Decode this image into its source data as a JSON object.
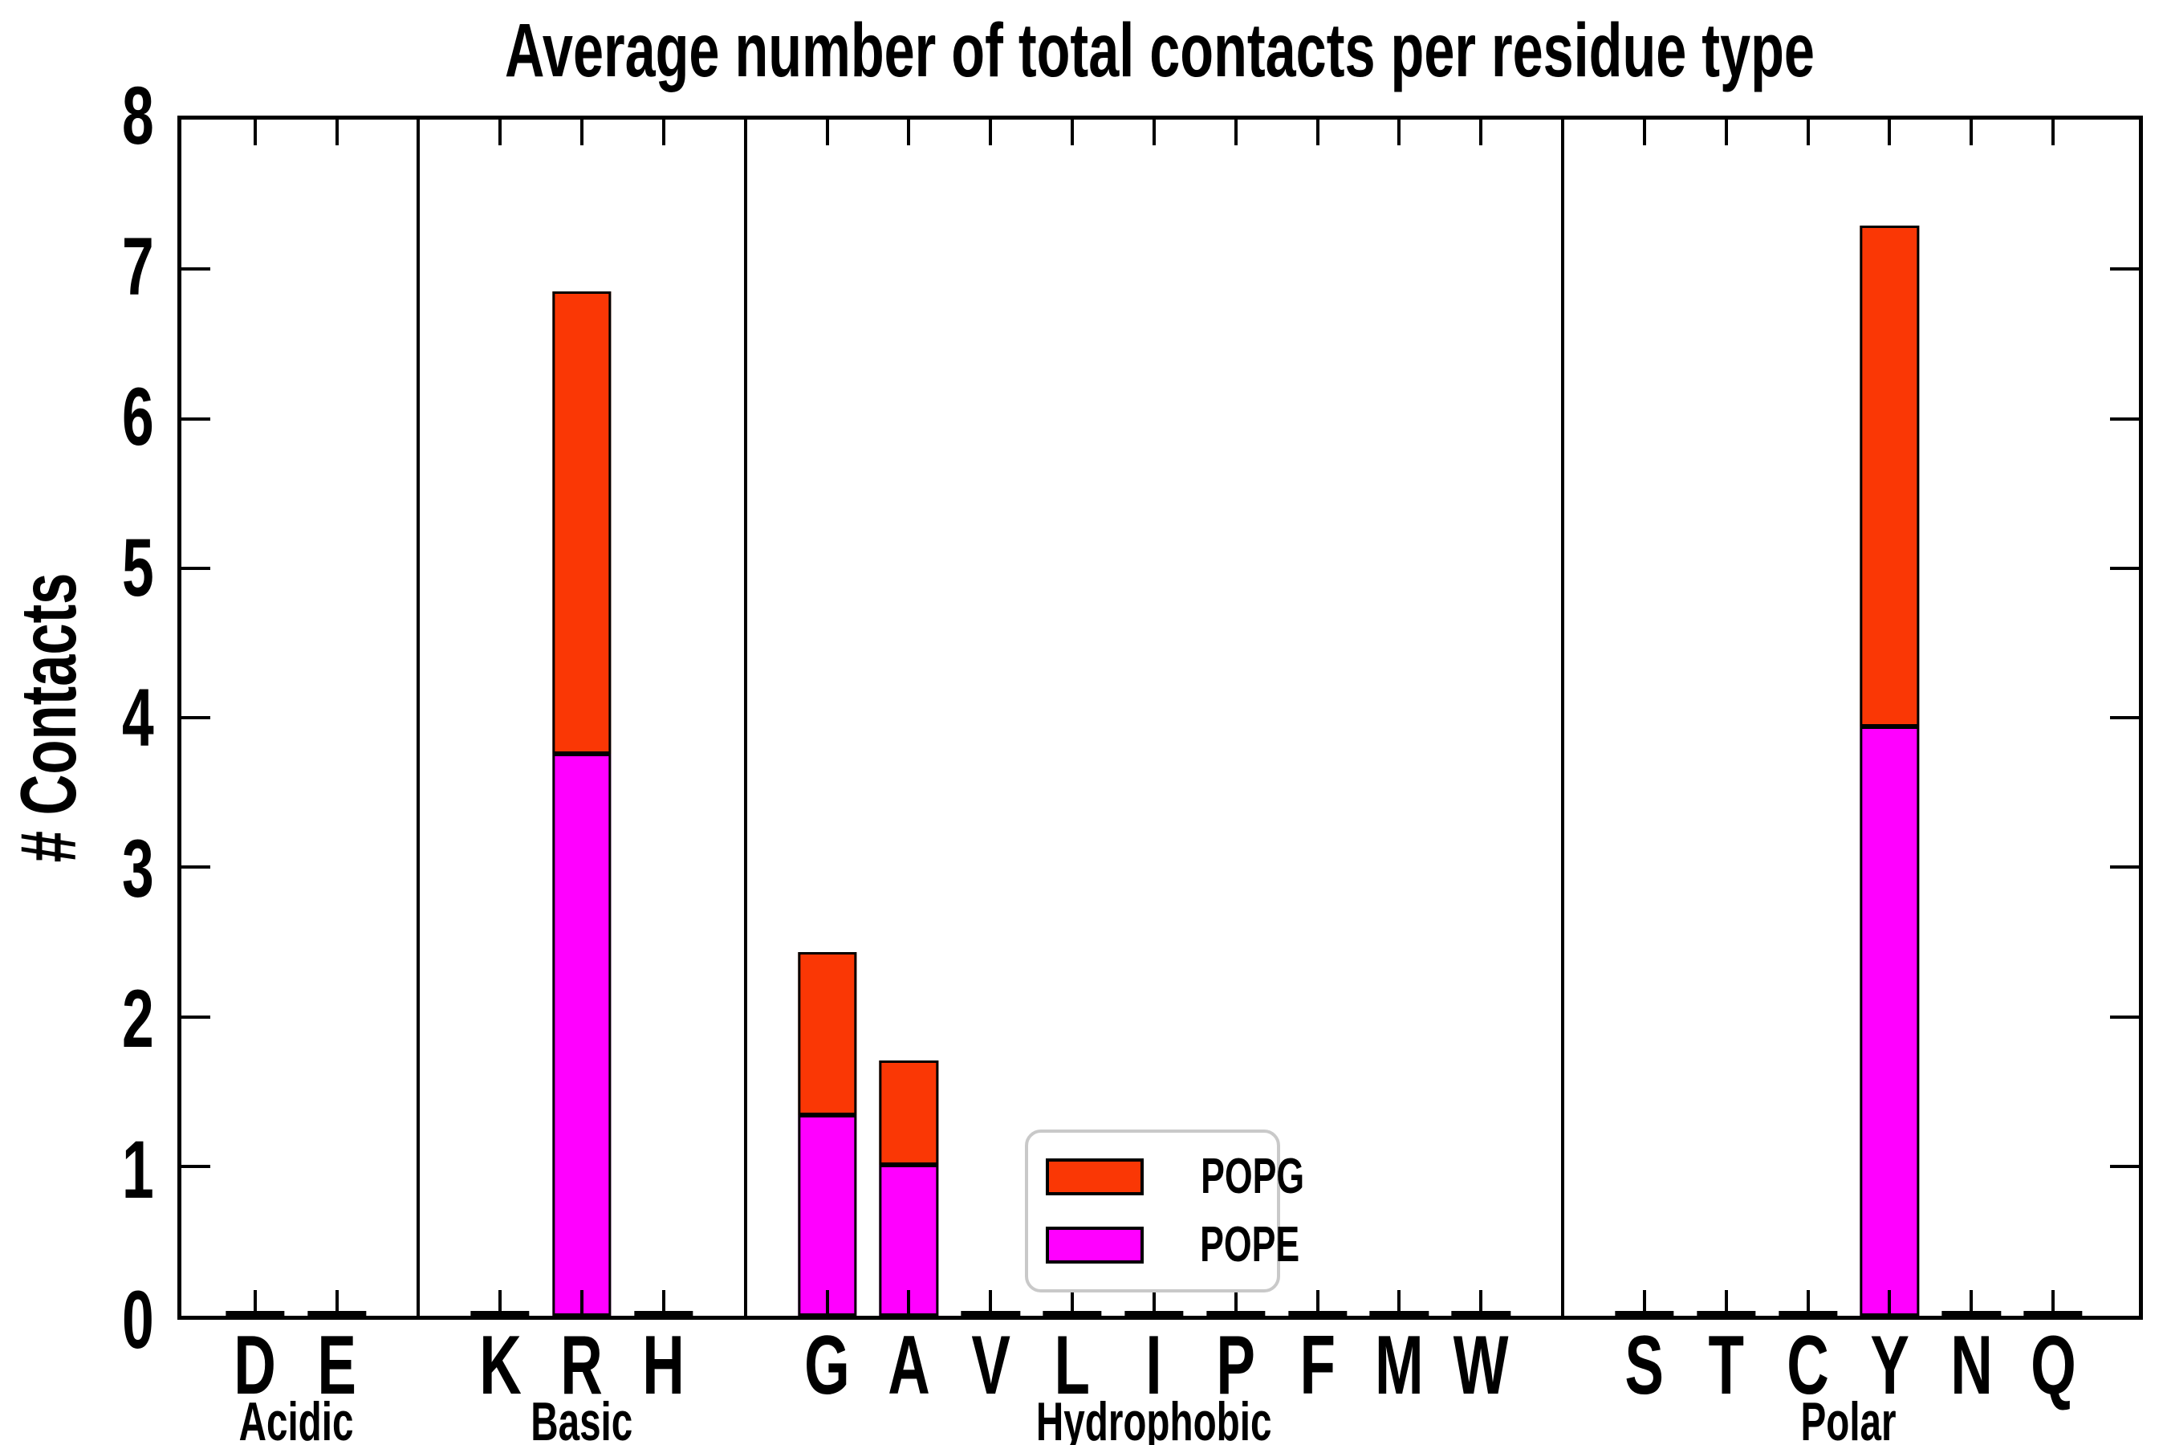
{
  "chart_data": {
    "type": "bar",
    "subtype": "stacked-vertical",
    "title": "Average number of total contacts per residue type",
    "xlabel": "",
    "ylabel": "# Contacts",
    "ylim": [
      0,
      8
    ],
    "yticks": [
      0,
      1,
      2,
      3,
      4,
      5,
      6,
      7,
      8
    ],
    "grid": false,
    "tick_direction": "in",
    "categories": [
      "D",
      "E",
      "K",
      "R",
      "H",
      "G",
      "A",
      "V",
      "L",
      "I",
      "P",
      "F",
      "M",
      "W",
      "S",
      "T",
      "C",
      "Y",
      "N",
      "Q"
    ],
    "groups": [
      {
        "label": "Acidic",
        "residues": [
          "D",
          "E"
        ]
      },
      {
        "label": "Basic",
        "residues": [
          "K",
          "R",
          "H"
        ]
      },
      {
        "label": "Hydrophobic",
        "residues": [
          "G",
          "A",
          "V",
          "L",
          "I",
          "P",
          "F",
          "M",
          "W"
        ]
      },
      {
        "label": "Polar",
        "residues": [
          "S",
          "T",
          "C",
          "Y",
          "N",
          "Q"
        ]
      }
    ],
    "series": [
      {
        "name": "POPE",
        "color": "#FF00FF",
        "values": [
          0,
          0,
          0,
          3.76,
          0,
          1.34,
          1.01,
          0,
          0,
          0,
          0,
          0,
          0,
          0,
          0,
          0,
          0,
          3.94,
          0,
          0
        ]
      },
      {
        "name": "POPG",
        "color": "#FA3705",
        "values": [
          0,
          0,
          0,
          3.09,
          0,
          1.09,
          0.7,
          0,
          0,
          0,
          0,
          0,
          0,
          0,
          0,
          0,
          0,
          3.35,
          0,
          0
        ]
      }
    ],
    "stacked_totals": {
      "R": 6.85,
      "G": 2.43,
      "A": 1.71,
      "Y": 7.29
    },
    "legend": {
      "position": "lower-center-left-inside",
      "entries": [
        "POPG",
        "POPE"
      ]
    },
    "style": {
      "background": "#FFFFFF",
      "axis_color": "#000000",
      "bar_outline_color": "#000000",
      "legend_border_color": "#C9C9C9",
      "group_divider_color": "#000000"
    }
  }
}
